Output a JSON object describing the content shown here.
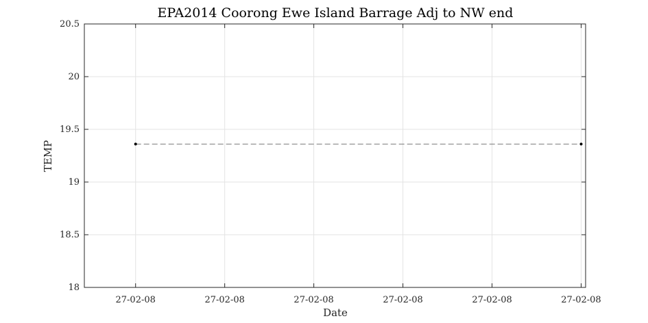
{
  "chart_data": {
    "type": "line",
    "title": "EPA2014 Coorong Ewe Island Barrage Adj to NW end",
    "xlabel": "Date",
    "ylabel": "TEMP",
    "ylim": [
      18,
      20.5
    ],
    "yticks": [
      18,
      18.5,
      19,
      19.5,
      20,
      20.5
    ],
    "xticks": [
      0,
      0.2,
      0.4,
      0.6,
      0.8,
      1.0
    ],
    "xtick_labels": [
      "27-02-08",
      "27-02-08",
      "27-02-08",
      "27-02-08",
      "27-02-08",
      "27-02-08"
    ],
    "xlim": [
      -0.115,
      1.01
    ],
    "grid": true,
    "series": [
      {
        "line_style": "dashed",
        "marker": "dot",
        "color": "#777777",
        "marker_color": "#000000",
        "x": [
          0,
          1.0
        ],
        "y": [
          19.36,
          19.36
        ]
      }
    ]
  }
}
